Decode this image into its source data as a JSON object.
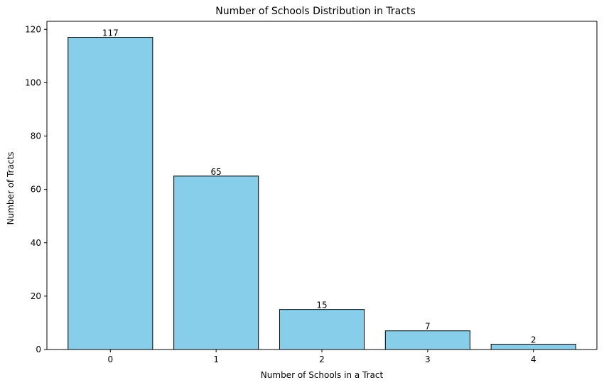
{
  "chart_data": {
    "type": "bar",
    "title": "Number of Schools Distribution in Tracts",
    "xlabel": "Number of Schools in a Tract",
    "ylabel": "Number of Tracts",
    "categories": [
      "0",
      "1",
      "2",
      "3",
      "4"
    ],
    "values": [
      117,
      65,
      15,
      7,
      2
    ],
    "data_labels": [
      "117",
      "65",
      "15",
      "7",
      "2"
    ],
    "ylim": [
      0,
      123
    ],
    "yticks": [
      0,
      20,
      40,
      60,
      80,
      100,
      120
    ],
    "grid": false,
    "legend": "none",
    "colors": {
      "bar_fill": "#87CEEB",
      "bar_edge": "#000000",
      "axis": "#000000",
      "text": "#000000"
    }
  }
}
